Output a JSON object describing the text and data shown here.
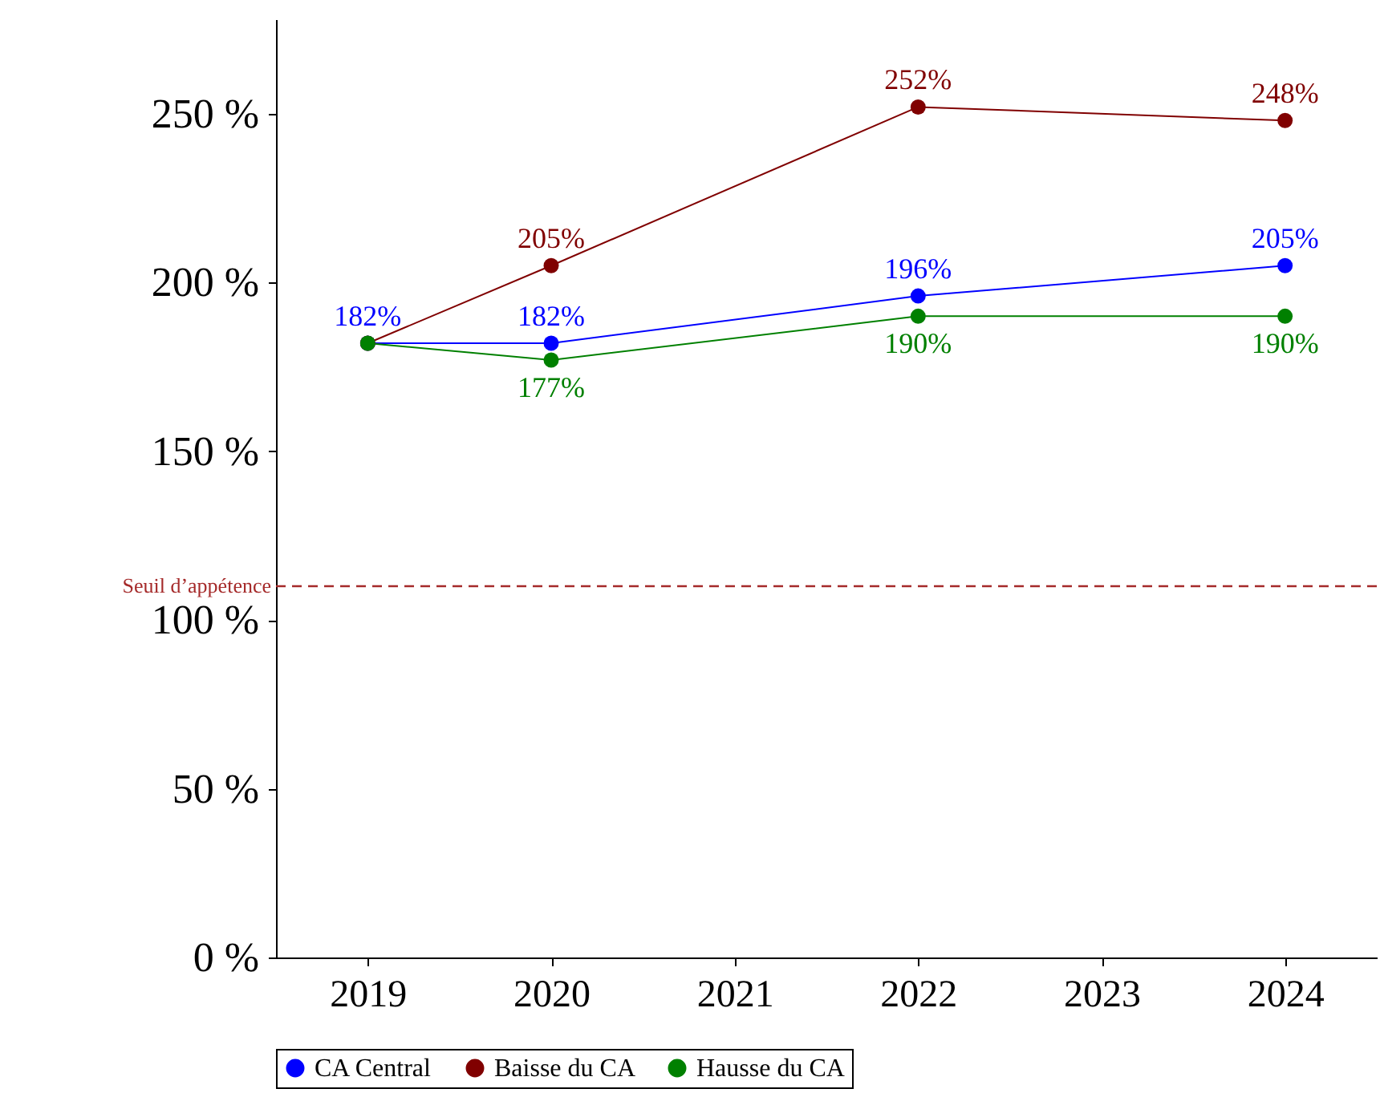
{
  "chart_data": {
    "type": "line",
    "x": [
      2019,
      2020,
      2022,
      2024
    ],
    "series": [
      {
        "name": "CA Central",
        "color": "#0000ff",
        "values": [
          182,
          182,
          196,
          205
        ],
        "value_labels": [
          "182%",
          "182%",
          "196%",
          "205%"
        ]
      },
      {
        "name": "Baisse du CA",
        "color": "#800000",
        "values": [
          182,
          205,
          252,
          248
        ],
        "value_labels": [
          null,
          "205%",
          "252%",
          "248%"
        ]
      },
      {
        "name": "Hausse du CA",
        "color": "#008000",
        "values": [
          182,
          177,
          190,
          190
        ],
        "value_labels": [
          null,
          "177%",
          "190%",
          "190%"
        ]
      }
    ],
    "xlim": [
      2018.5,
      2024.5
    ],
    "xticks": [
      2019,
      2020,
      2021,
      2022,
      2023,
      2024
    ],
    "ylim": [
      0,
      278
    ],
    "yticks": [
      {
        "value": 0,
        "label": "0 %"
      },
      {
        "value": 50,
        "label": "50 %"
      },
      {
        "value": 100,
        "label": "100 %"
      },
      {
        "value": 150,
        "label": "150 %"
      },
      {
        "value": 200,
        "label": "200 %"
      },
      {
        "value": 250,
        "label": "250 %"
      }
    ],
    "ref_lines": [
      {
        "axis": "y",
        "value": 110,
        "label": "Seuil d’appétence",
        "color": "#a52a2a",
        "line_style": "dashed"
      }
    ],
    "legend": "bottom",
    "marker": "circle",
    "grid": false
  }
}
